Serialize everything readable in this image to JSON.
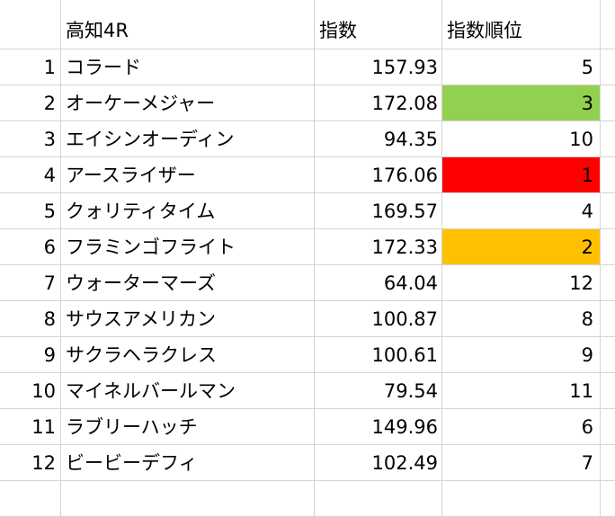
{
  "sheet": {
    "header": {
      "race": "高知4R",
      "score": "指数",
      "rank": "指数順位"
    },
    "rows": [
      {
        "no": "1",
        "name": "コラード",
        "score": "157.93",
        "rank": "5",
        "fill": ""
      },
      {
        "no": "2",
        "name": "オーケーメジャー",
        "score": "172.08",
        "rank": "3",
        "fill": "#92d050"
      },
      {
        "no": "3",
        "name": "エイシンオーディン",
        "score": "94.35",
        "rank": "10",
        "fill": ""
      },
      {
        "no": "4",
        "name": "アースライザー",
        "score": "176.06",
        "rank": "1",
        "fill": "#ff0000"
      },
      {
        "no": "5",
        "name": "クォリティタイム",
        "score": "169.57",
        "rank": "4",
        "fill": ""
      },
      {
        "no": "6",
        "name": "フラミンゴフライト",
        "score": "172.33",
        "rank": "2",
        "fill": "#ffc000"
      },
      {
        "no": "7",
        "name": "ウォーターマーズ",
        "score": "64.04",
        "rank": "12",
        "fill": ""
      },
      {
        "no": "8",
        "name": "サウスアメリカン",
        "score": "100.87",
        "rank": "8",
        "fill": ""
      },
      {
        "no": "9",
        "name": "サクラヘラクレス",
        "score": "100.61",
        "rank": "9",
        "fill": ""
      },
      {
        "no": "10",
        "name": "マイネルバールマン",
        "score": "79.54",
        "rank": "11",
        "fill": ""
      },
      {
        "no": "11",
        "name": "ラブリーハッチ",
        "score": "149.96",
        "rank": "6",
        "fill": ""
      },
      {
        "no": "12",
        "name": "ビービーデフィ",
        "score": "102.49",
        "rank": "7",
        "fill": ""
      }
    ]
  }
}
